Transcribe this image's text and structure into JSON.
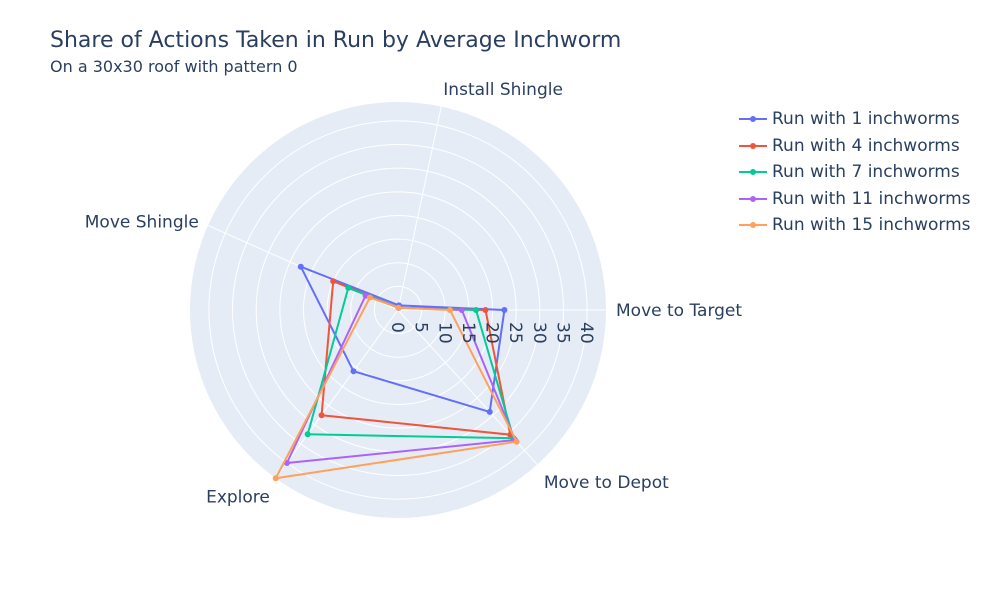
{
  "chart_data": {
    "type": "radar",
    "title": "Share of Actions Taken in Run by Average Inchworm",
    "subtitle": "On a 30x30 roof with pattern 0",
    "categories": [
      "Move to Target",
      "Install Shingle",
      "Move Shingle",
      "Explore",
      "Move to Depot"
    ],
    "radial_ticks": [
      "0",
      "5",
      "10",
      "15",
      "20",
      "25",
      "30",
      "35",
      "40"
    ],
    "radial_range": [
      0,
      44
    ],
    "series": [
      {
        "name": "Run with 1 inchworms",
        "color": "#636efa",
        "values": [
          22.5,
          1.0,
          22.5,
          16.0,
          29.0
        ]
      },
      {
        "name": "Run with 4 inchworms",
        "color": "#EF553B",
        "values": [
          18.5,
          0.5,
          15.0,
          27.5,
          35.5
        ]
      },
      {
        "name": "Run with 7 inchworms",
        "color": "#00cc96",
        "values": [
          16.5,
          0.5,
          11.5,
          32.5,
          36.5
        ]
      },
      {
        "name": "Run with 11 inchworms",
        "color": "#ab63fa",
        "values": [
          13.5,
          0.5,
          7.5,
          40.0,
          37.0
        ]
      },
      {
        "name": "Run with 15 inchworms",
        "color": "#FFA15A",
        "values": [
          11.0,
          0.5,
          6.5,
          44.0,
          37.5
        ]
      }
    ]
  }
}
